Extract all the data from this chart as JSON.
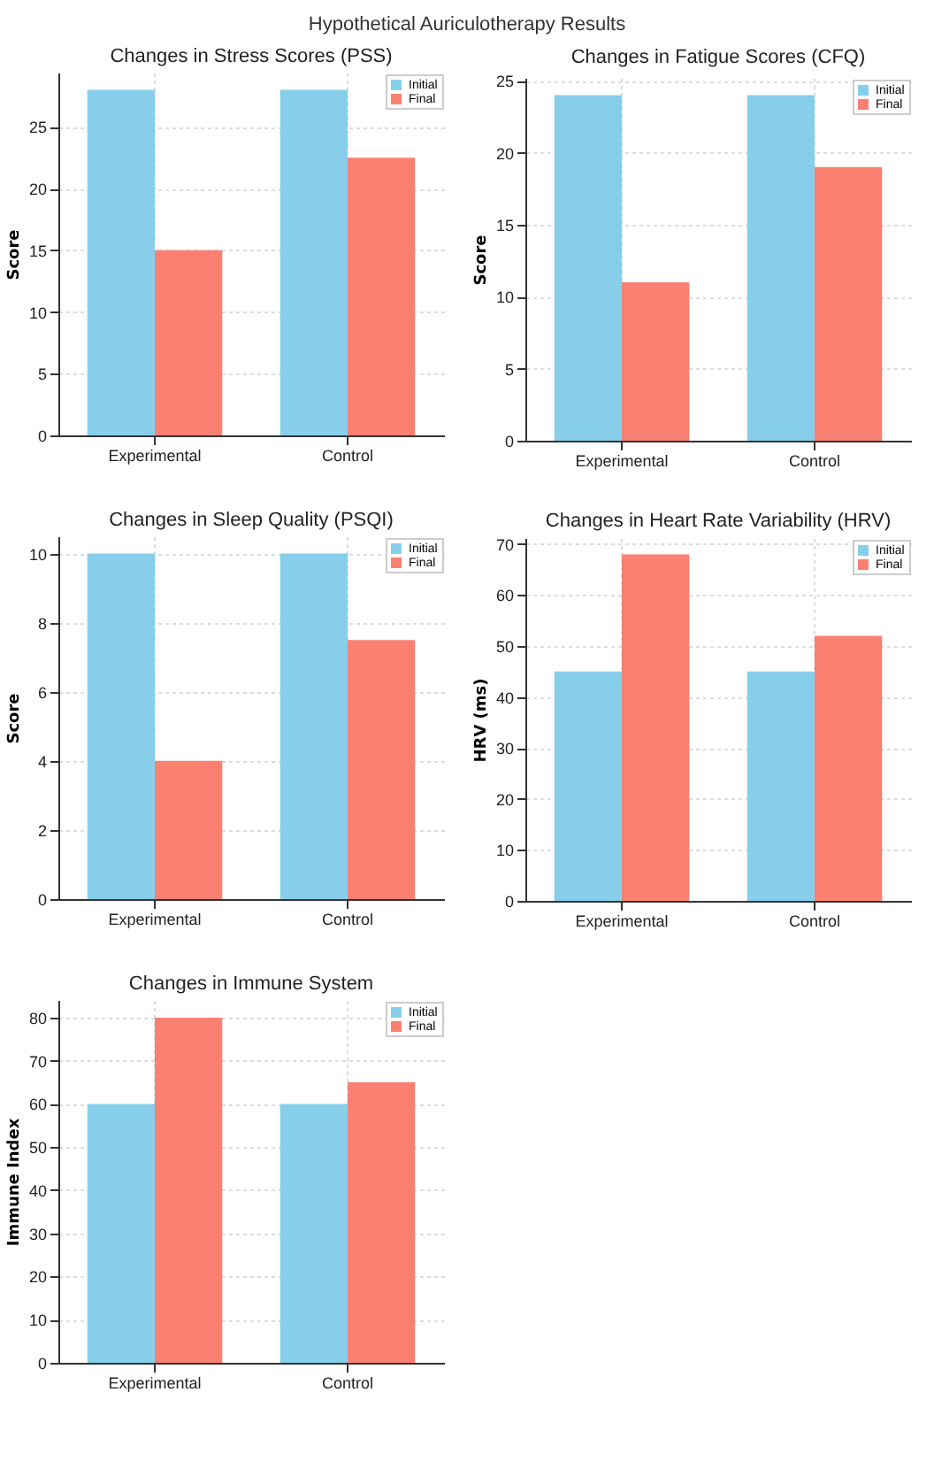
{
  "chart_data": [
    {
      "type": "other",
      "title": "Hypothetical Auriculotherapy Results"
    },
    {
      "type": "bar",
      "title": "Changes in Stress Scores (PSS)",
      "ylabel": "Score",
      "categories": [
        "Experimental",
        "Control"
      ],
      "series": [
        {
          "name": "Initial",
          "color": "#87ceeb",
          "values": [
            28,
            28
          ]
        },
        {
          "name": "Final",
          "color": "#fa8072",
          "values": [
            15,
            22.5
          ]
        }
      ],
      "ylim": [
        0,
        29.4
      ],
      "yticks": [
        0,
        5,
        10,
        15,
        20,
        25
      ],
      "grid": true,
      "legend": "top right"
    },
    {
      "type": "bar",
      "title": "Changes in Fatigue Scores (CFQ)",
      "ylabel": "Score",
      "categories": [
        "Experimental",
        "Control"
      ],
      "series": [
        {
          "name": "Initial",
          "color": "#87ceeb",
          "values": [
            24,
            24
          ]
        },
        {
          "name": "Final",
          "color": "#fa8072",
          "values": [
            11,
            19
          ]
        }
      ],
      "ylim": [
        0,
        25.2
      ],
      "yticks": [
        0,
        5,
        10,
        15,
        20,
        25
      ],
      "grid": true,
      "legend": "top right"
    },
    {
      "type": "bar",
      "title": "Changes in Sleep Quality (PSQI)",
      "ylabel": "Score",
      "categories": [
        "Experimental",
        "Control"
      ],
      "series": [
        {
          "name": "Initial",
          "color": "#87ceeb",
          "values": [
            10,
            10
          ]
        },
        {
          "name": "Final",
          "color": "#fa8072",
          "values": [
            4,
            7.5
          ]
        }
      ],
      "ylim": [
        0,
        10.5
      ],
      "yticks": [
        0,
        2,
        4,
        6,
        8,
        10
      ],
      "grid": true,
      "legend": "top right"
    },
    {
      "type": "bar",
      "title": "Changes in Heart Rate Variability (HRV)",
      "ylabel": "HRV (ms)",
      "categories": [
        "Experimental",
        "Control"
      ],
      "series": [
        {
          "name": "Initial",
          "color": "#87ceeb",
          "values": [
            45,
            45
          ]
        },
        {
          "name": "Final",
          "color": "#fa8072",
          "values": [
            68,
            52
          ]
        }
      ],
      "ylim": [
        0,
        71.2
      ],
      "yticks": [
        0,
        10,
        20,
        30,
        40,
        50,
        60,
        70
      ],
      "grid": true,
      "legend": "top right"
    },
    {
      "type": "bar",
      "title": "Changes in Immune System",
      "ylabel": "Immune Index",
      "categories": [
        "Experimental",
        "Control"
      ],
      "series": [
        {
          "name": "Initial",
          "color": "#87ceeb",
          "values": [
            60,
            60
          ]
        },
        {
          "name": "Final",
          "color": "#fa8072",
          "values": [
            80,
            65
          ]
        }
      ],
      "ylim": [
        0,
        84.1
      ],
      "yticks": [
        0,
        10,
        20,
        30,
        40,
        50,
        60,
        70,
        80
      ],
      "grid": true,
      "legend": "top right"
    }
  ]
}
